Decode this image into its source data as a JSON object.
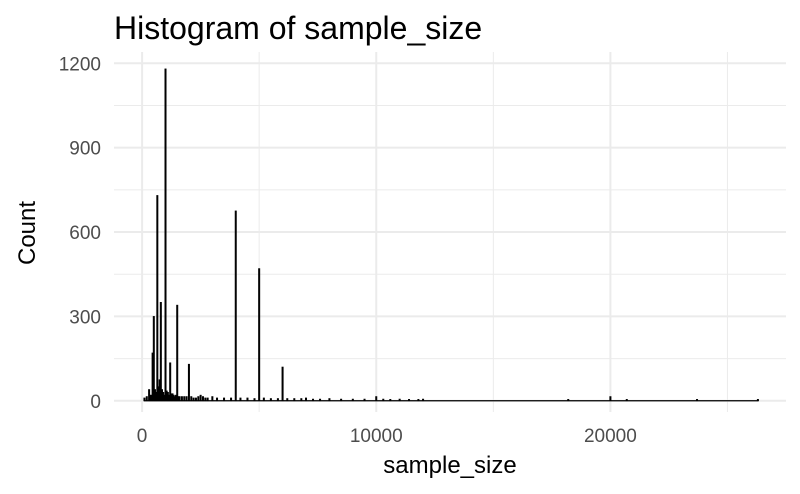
{
  "chart_data": {
    "type": "bar",
    "title": "Histogram of sample_size",
    "xlabel": "sample_size",
    "ylabel": "Count",
    "xlim": [
      -1200,
      27500
    ],
    "ylim": [
      -40,
      1240
    ],
    "x_ticks": [
      0,
      10000,
      20000
    ],
    "x_tick_labels": [
      "0",
      "10000",
      "20000"
    ],
    "y_ticks": [
      0,
      300,
      600,
      900,
      1200
    ],
    "y_tick_labels": [
      "0",
      "300",
      "600",
      "900",
      "1200"
    ],
    "grid": true,
    "bin_width": 50,
    "bins": [
      {
        "x": 100,
        "count": 10
      },
      {
        "x": 200,
        "count": 15
      },
      {
        "x": 300,
        "count": 40
      },
      {
        "x": 350,
        "count": 20
      },
      {
        "x": 400,
        "count": 20
      },
      {
        "x": 450,
        "count": 170
      },
      {
        "x": 500,
        "count": 300
      },
      {
        "x": 550,
        "count": 40
      },
      {
        "x": 600,
        "count": 30
      },
      {
        "x": 650,
        "count": 730
      },
      {
        "x": 700,
        "count": 50
      },
      {
        "x": 750,
        "count": 75
      },
      {
        "x": 800,
        "count": 350
      },
      {
        "x": 850,
        "count": 40
      },
      {
        "x": 900,
        "count": 30
      },
      {
        "x": 950,
        "count": 20
      },
      {
        "x": 1000,
        "count": 1180
      },
      {
        "x": 1050,
        "count": 35
      },
      {
        "x": 1100,
        "count": 30
      },
      {
        "x": 1150,
        "count": 20
      },
      {
        "x": 1200,
        "count": 135
      },
      {
        "x": 1250,
        "count": 25
      },
      {
        "x": 1300,
        "count": 25
      },
      {
        "x": 1350,
        "count": 20
      },
      {
        "x": 1400,
        "count": 15
      },
      {
        "x": 1450,
        "count": 20
      },
      {
        "x": 1500,
        "count": 340
      },
      {
        "x": 1550,
        "count": 15
      },
      {
        "x": 1600,
        "count": 15
      },
      {
        "x": 1700,
        "count": 15
      },
      {
        "x": 1800,
        "count": 15
      },
      {
        "x": 1900,
        "count": 15
      },
      {
        "x": 2000,
        "count": 130
      },
      {
        "x": 2100,
        "count": 15
      },
      {
        "x": 2200,
        "count": 10
      },
      {
        "x": 2300,
        "count": 10
      },
      {
        "x": 2400,
        "count": 15
      },
      {
        "x": 2500,
        "count": 20
      },
      {
        "x": 2600,
        "count": 15
      },
      {
        "x": 2700,
        "count": 10
      },
      {
        "x": 2800,
        "count": 10
      },
      {
        "x": 3000,
        "count": 15
      },
      {
        "x": 3200,
        "count": 10
      },
      {
        "x": 3500,
        "count": 10
      },
      {
        "x": 3800,
        "count": 10
      },
      {
        "x": 4000,
        "count": 675
      },
      {
        "x": 4200,
        "count": 10
      },
      {
        "x": 4500,
        "count": 10
      },
      {
        "x": 4800,
        "count": 8
      },
      {
        "x": 5000,
        "count": 470
      },
      {
        "x": 5200,
        "count": 10
      },
      {
        "x": 5500,
        "count": 8
      },
      {
        "x": 5800,
        "count": 8
      },
      {
        "x": 6000,
        "count": 120
      },
      {
        "x": 6200,
        "count": 8
      },
      {
        "x": 6500,
        "count": 8
      },
      {
        "x": 6800,
        "count": 8
      },
      {
        "x": 7000,
        "count": 10
      },
      {
        "x": 7300,
        "count": 6
      },
      {
        "x": 7600,
        "count": 6
      },
      {
        "x": 8000,
        "count": 8
      },
      {
        "x": 8500,
        "count": 6
      },
      {
        "x": 9000,
        "count": 6
      },
      {
        "x": 9500,
        "count": 6
      },
      {
        "x": 10000,
        "count": 15
      },
      {
        "x": 10300,
        "count": 6
      },
      {
        "x": 10600,
        "count": 5
      },
      {
        "x": 11000,
        "count": 6
      },
      {
        "x": 11400,
        "count": 5
      },
      {
        "x": 11800,
        "count": 5
      },
      {
        "x": 12000,
        "count": 6
      },
      {
        "x": 18200,
        "count": 5
      },
      {
        "x": 20000,
        "count": 15
      },
      {
        "x": 20700,
        "count": 5
      },
      {
        "x": 23700,
        "count": 5
      },
      {
        "x": 26300,
        "count": 5
      }
    ]
  }
}
